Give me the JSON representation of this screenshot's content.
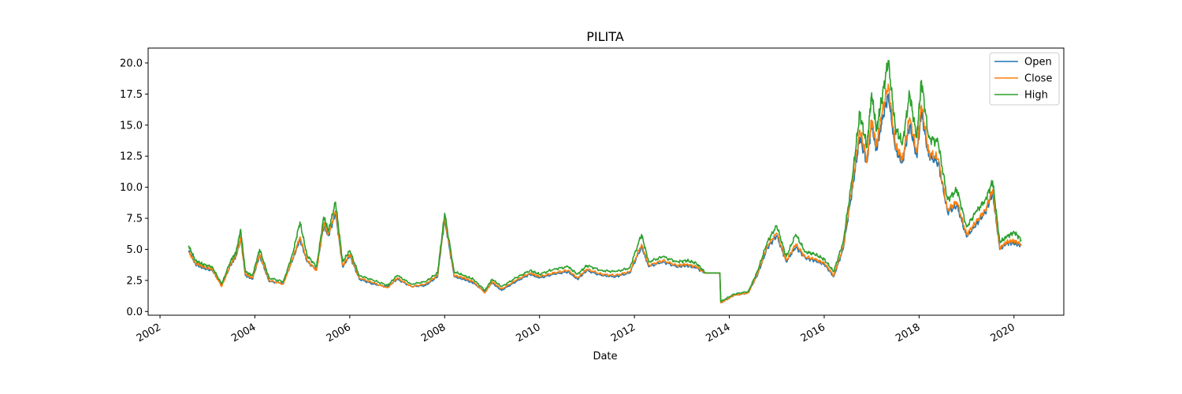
{
  "chart_data": {
    "type": "line",
    "title": "PILITA",
    "xlabel": "Date",
    "ylabel": "",
    "xlim": [
      2001.75,
      2021.05
    ],
    "ylim": [
      -0.3,
      21.2
    ],
    "x_ticks": [
      2002,
      2004,
      2006,
      2008,
      2010,
      2012,
      2014,
      2016,
      2018,
      2020
    ],
    "y_ticks": [
      0.0,
      2.5,
      5.0,
      7.5,
      10.0,
      12.5,
      15.0,
      17.5,
      20.0
    ],
    "y_tick_labels": [
      "0.0",
      "2.5",
      "5.0",
      "7.5",
      "10.0",
      "12.5",
      "15.0",
      "17.5",
      "20.0"
    ],
    "legend_position": "top-right",
    "grid": false,
    "series": [
      {
        "name": "Open",
        "color": "#1f77b4",
        "x": [
          2002.6,
          2002.75,
          2002.9,
          2003.1,
          2003.3,
          2003.5,
          2003.6,
          2003.7,
          2003.8,
          2003.95,
          2004.1,
          2004.3,
          2004.6,
          2004.8,
          2004.95,
          2005.1,
          2005.3,
          2005.45,
          2005.55,
          2005.7,
          2005.85,
          2006.0,
          2006.2,
          2006.5,
          2006.8,
          2007.0,
          2007.3,
          2007.6,
          2007.85,
          2008.0,
          2008.2,
          2008.4,
          2008.6,
          2008.85,
          2009.0,
          2009.2,
          2009.5,
          2009.8,
          2010.0,
          2010.3,
          2010.6,
          2010.8,
          2011.0,
          2011.3,
          2011.6,
          2011.9,
          2012.15,
          2012.3,
          2012.6,
          2012.9,
          2013.1,
          2013.3,
          2013.5,
          2013.8,
          2013.82,
          2014.1,
          2014.4,
          2014.6,
          2014.8,
          2015.0,
          2015.2,
          2015.4,
          2015.6,
          2015.8,
          2016.0,
          2016.2,
          2016.4,
          2016.6,
          2016.75,
          2016.9,
          2017.0,
          2017.1,
          2017.2,
          2017.35,
          2017.5,
          2017.65,
          2017.8,
          2017.95,
          2018.05,
          2018.2,
          2018.4,
          2018.6,
          2018.8,
          2019.0,
          2019.2,
          2019.4,
          2019.55,
          2019.7,
          2019.85,
          2020.0,
          2020.15
        ],
        "values": [
          4.9,
          3.8,
          3.5,
          3.3,
          2.1,
          3.8,
          4.4,
          5.8,
          2.9,
          2.6,
          4.5,
          2.4,
          2.3,
          4.2,
          5.8,
          4.0,
          3.4,
          6.9,
          6.1,
          7.9,
          3.6,
          4.5,
          2.6,
          2.2,
          2.0,
          2.6,
          2.0,
          2.1,
          2.8,
          7.4,
          2.8,
          2.6,
          2.3,
          1.6,
          2.3,
          1.7,
          2.4,
          3.0,
          2.7,
          3.0,
          3.2,
          2.6,
          3.3,
          2.9,
          2.8,
          3.1,
          5.2,
          3.6,
          4.0,
          3.6,
          3.7,
          3.5,
          3.1,
          3.1,
          0.7,
          1.3,
          1.5,
          3.0,
          5.1,
          6.1,
          4.0,
          5.2,
          4.3,
          4.1,
          3.8,
          2.8,
          5.0,
          10.0,
          14.0,
          12.0,
          15.0,
          13.0,
          15.0,
          17.5,
          13.0,
          12.0,
          15.0,
          12.5,
          16.0,
          12.5,
          12.0,
          8.0,
          8.5,
          6.0,
          7.0,
          8.0,
          9.5,
          5.0,
          5.5,
          5.5,
          5.3
        ]
      },
      {
        "name": "Close",
        "color": "#ff7f0e",
        "x": [
          2002.6,
          2002.75,
          2002.9,
          2003.1,
          2003.3,
          2003.5,
          2003.6,
          2003.7,
          2003.8,
          2003.95,
          2004.1,
          2004.3,
          2004.6,
          2004.8,
          2004.95,
          2005.1,
          2005.3,
          2005.45,
          2005.55,
          2005.7,
          2005.85,
          2006.0,
          2006.2,
          2006.5,
          2006.8,
          2007.0,
          2007.3,
          2007.6,
          2007.85,
          2008.0,
          2008.2,
          2008.4,
          2008.6,
          2008.85,
          2009.0,
          2009.2,
          2009.5,
          2009.8,
          2010.0,
          2010.3,
          2010.6,
          2010.8,
          2011.0,
          2011.3,
          2011.6,
          2011.9,
          2012.15,
          2012.3,
          2012.6,
          2012.9,
          2013.1,
          2013.3,
          2013.5,
          2013.8,
          2013.82,
          2014.1,
          2014.4,
          2014.6,
          2014.8,
          2015.0,
          2015.2,
          2015.4,
          2015.6,
          2015.8,
          2016.0,
          2016.2,
          2016.4,
          2016.6,
          2016.75,
          2016.9,
          2017.0,
          2017.1,
          2017.2,
          2017.35,
          2017.5,
          2017.65,
          2017.8,
          2017.95,
          2018.05,
          2018.2,
          2018.4,
          2018.6,
          2018.8,
          2019.0,
          2019.2,
          2019.4,
          2019.55,
          2019.7,
          2019.85,
          2020.0,
          2020.15
        ],
        "values": [
          4.8,
          3.9,
          3.6,
          3.4,
          2.0,
          3.9,
          4.5,
          5.9,
          3.0,
          2.7,
          4.6,
          2.5,
          2.2,
          4.3,
          6.0,
          4.1,
          3.3,
          7.1,
          6.2,
          8.1,
          3.7,
          4.6,
          2.7,
          2.3,
          1.9,
          2.7,
          2.0,
          2.2,
          2.9,
          7.6,
          2.9,
          2.7,
          2.4,
          1.5,
          2.4,
          1.8,
          2.5,
          3.1,
          2.8,
          3.1,
          3.3,
          2.7,
          3.4,
          3.0,
          2.9,
          3.2,
          5.4,
          3.7,
          4.1,
          3.7,
          3.8,
          3.6,
          3.1,
          3.1,
          0.7,
          1.3,
          1.5,
          3.1,
          5.3,
          6.3,
          4.1,
          5.4,
          4.4,
          4.2,
          3.9,
          2.9,
          5.2,
          10.4,
          14.6,
          12.2,
          15.4,
          13.3,
          15.6,
          18.3,
          13.4,
          12.2,
          15.6,
          12.8,
          16.6,
          12.8,
          12.3,
          8.2,
          8.8,
          6.2,
          7.2,
          8.2,
          9.8,
          5.1,
          5.6,
          5.7,
          5.4
        ]
      },
      {
        "name": "High",
        "color": "#2ca02c",
        "x": [
          2002.6,
          2002.75,
          2002.9,
          2003.1,
          2003.3,
          2003.5,
          2003.6,
          2003.7,
          2003.8,
          2003.95,
          2004.1,
          2004.3,
          2004.6,
          2004.8,
          2004.95,
          2005.1,
          2005.3,
          2005.45,
          2005.55,
          2005.7,
          2005.85,
          2006.0,
          2006.2,
          2006.5,
          2006.8,
          2007.0,
          2007.3,
          2007.6,
          2007.85,
          2008.0,
          2008.2,
          2008.4,
          2008.6,
          2008.85,
          2009.0,
          2009.2,
          2009.5,
          2009.8,
          2010.0,
          2010.3,
          2010.6,
          2010.8,
          2011.0,
          2011.3,
          2011.6,
          2011.9,
          2012.15,
          2012.3,
          2012.6,
          2012.9,
          2013.1,
          2013.3,
          2013.5,
          2013.8,
          2013.82,
          2014.1,
          2014.4,
          2014.6,
          2014.8,
          2015.0,
          2015.2,
          2015.4,
          2015.6,
          2015.8,
          2016.0,
          2016.2,
          2016.4,
          2016.6,
          2016.75,
          2016.9,
          2017.0,
          2017.1,
          2017.2,
          2017.35,
          2017.5,
          2017.65,
          2017.8,
          2017.95,
          2018.05,
          2018.2,
          2018.4,
          2018.6,
          2018.8,
          2019.0,
          2019.2,
          2019.4,
          2019.55,
          2019.7,
          2019.85,
          2020.0,
          2020.15
        ],
        "values": [
          5.3,
          4.1,
          3.8,
          3.6,
          2.2,
          4.2,
          4.7,
          6.6,
          3.2,
          2.9,
          5.0,
          2.7,
          2.4,
          4.7,
          7.2,
          4.5,
          3.6,
          7.6,
          6.5,
          8.8,
          4.0,
          4.9,
          2.9,
          2.5,
          2.1,
          2.9,
          2.2,
          2.4,
          3.1,
          7.9,
          3.2,
          2.9,
          2.6,
          1.7,
          2.6,
          2.0,
          2.7,
          3.3,
          3.0,
          3.4,
          3.6,
          3.0,
          3.7,
          3.3,
          3.2,
          3.5,
          6.2,
          4.0,
          4.4,
          4.0,
          4.1,
          3.9,
          3.1,
          3.1,
          0.8,
          1.4,
          1.6,
          3.3,
          5.6,
          6.9,
          4.4,
          6.2,
          4.8,
          4.6,
          4.2,
          3.2,
          5.6,
          11.0,
          16.0,
          13.2,
          17.6,
          14.5,
          16.8,
          20.2,
          14.8,
          13.5,
          17.5,
          14.0,
          18.6,
          14.0,
          13.6,
          9.0,
          9.8,
          6.8,
          8.0,
          9.0,
          10.5,
          5.6,
          6.0,
          6.4,
          5.8
        ]
      }
    ]
  }
}
